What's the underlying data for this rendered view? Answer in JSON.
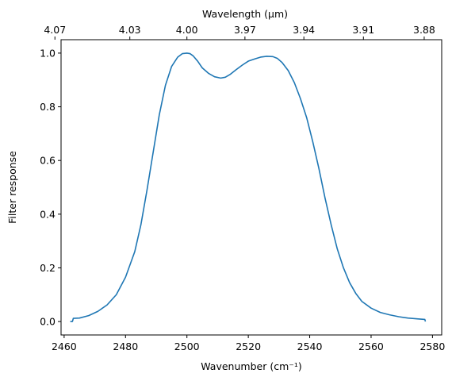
{
  "chart_data": {
    "type": "line",
    "title": "",
    "xlabel": "Wavenumber (cm⁻¹)",
    "ylabel": "Filter response",
    "top_xlabel": "Wavelength (μm)",
    "xlim": [
      2459,
      2583
    ],
    "ylim": [
      -0.05,
      1.05
    ],
    "grid": false,
    "legend": "none",
    "x_ticks": [
      2460,
      2480,
      2500,
      2520,
      2540,
      2560,
      2580
    ],
    "y_ticks": [
      0.0,
      0.2,
      0.4,
      0.6,
      0.8,
      1.0
    ],
    "y_tick_labels": [
      "0.0",
      "0.2",
      "0.4",
      "0.6",
      "0.8",
      "1.0"
    ],
    "top_ticks": [
      {
        "wavenumber": 2457.0,
        "label": "4.07"
      },
      {
        "wavenumber": 2481.4,
        "label": "4.03"
      },
      {
        "wavenumber": 2500.0,
        "label": "4.00"
      },
      {
        "wavenumber": 2518.9,
        "label": "3.97"
      },
      {
        "wavenumber": 2538.1,
        "label": "3.94"
      },
      {
        "wavenumber": 2557.5,
        "label": "3.91"
      },
      {
        "wavenumber": 2577.3,
        "label": "3.88"
      }
    ],
    "series": [
      {
        "color": "#1f77b4",
        "x": [
          2462,
          2462.7,
          2463,
          2465,
          2468,
          2471,
          2474,
          2477,
          2480,
          2483,
          2485,
          2487,
          2489,
          2491,
          2493,
          2495,
          2497,
          2498.5,
          2500,
          2501,
          2502,
          2503.5,
          2505,
          2507,
          2509,
          2511,
          2512.5,
          2514,
          2516,
          2518,
          2520,
          2522,
          2524,
          2526,
          2528,
          2529.5,
          2531,
          2533,
          2535,
          2537,
          2539,
          2541,
          2543,
          2545,
          2547,
          2549,
          2551,
          2553,
          2555,
          2557,
          2560,
          2563,
          2566,
          2569,
          2572,
          2575,
          2577.5,
          2577.7
        ],
        "y": [
          0.0,
          0.0,
          0.012,
          0.013,
          0.022,
          0.038,
          0.062,
          0.1,
          0.165,
          0.26,
          0.36,
          0.49,
          0.63,
          0.77,
          0.88,
          0.95,
          0.985,
          0.998,
          1.0,
          0.998,
          0.99,
          0.97,
          0.945,
          0.925,
          0.912,
          0.907,
          0.91,
          0.92,
          0.938,
          0.955,
          0.97,
          0.978,
          0.985,
          0.988,
          0.987,
          0.98,
          0.965,
          0.935,
          0.89,
          0.83,
          0.76,
          0.67,
          0.57,
          0.46,
          0.36,
          0.27,
          0.2,
          0.145,
          0.105,
          0.075,
          0.05,
          0.034,
          0.025,
          0.018,
          0.013,
          0.01,
          0.008,
          0.0
        ]
      }
    ]
  }
}
